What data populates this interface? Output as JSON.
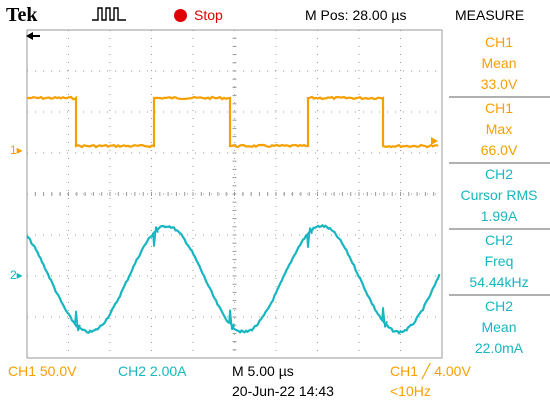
{
  "header": {
    "brand": "Tek",
    "run_status": "Stop",
    "m_pos": "M Pos: 28.00 µs",
    "measure_title": "MEASURE"
  },
  "measurements": [
    {
      "line1": "CH1",
      "line2": "Mean",
      "line3": "33.0V"
    },
    {
      "line1": "CH1",
      "line2": "Max",
      "line3": "66.0V"
    },
    {
      "line1": "CH2",
      "line2": "Cursor RMS",
      "line3": "1.99A"
    },
    {
      "line1": "CH2",
      "line2": "Freq",
      "line3": "54.44kHz"
    },
    {
      "line1": "CH2",
      "line2": "Mean",
      "line3": "22.0mA"
    }
  ],
  "footer": {
    "ch1_scale": "CH1  50.0V",
    "ch2_scale": "CH2  2.00A",
    "timebase": "M 5.00 µs",
    "trigger": "CH1  ╱  4.00V",
    "date_time": "20-Jun-22  14:43",
    "trigger_freq": "<10Hz"
  },
  "markers": {
    "ch1": "1▸",
    "ch2": "2▸"
  },
  "colors": {
    "ch1": "#f5a000",
    "ch2": "#17b6c0",
    "run_status": "#e00000",
    "grid": "#9a9a9a",
    "background": "#ffffff"
  },
  "icons": {
    "trigger_mode": "pulse-trigger-icon",
    "trigger_position": "left-arrow-icon",
    "run_status": "red-dot-icon"
  }
}
